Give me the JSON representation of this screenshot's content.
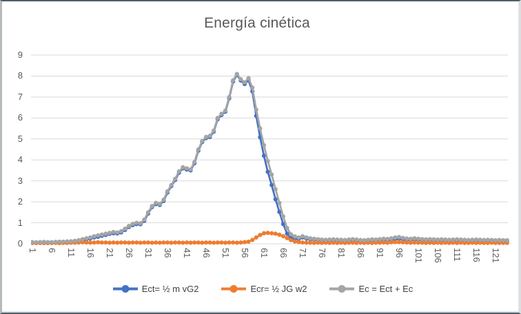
{
  "style": {
    "grid_color": "#D9D9D9",
    "tick_color": "#595959",
    "title_color": "#595959",
    "legend_text_color": "#404040"
  },
  "chart_data": {
    "type": "line",
    "title": "Energía cinética",
    "xlabel": "",
    "ylabel": "",
    "x_start": 1,
    "x_step": 1,
    "x_count": 124,
    "ylim": [
      0,
      9
    ],
    "grid": true,
    "legend_position": "bottom",
    "markers": "circle",
    "x_ticks": [
      1,
      6,
      11,
      16,
      21,
      26,
      31,
      36,
      41,
      46,
      51,
      56,
      61,
      66,
      71,
      76,
      81,
      86,
      91,
      96,
      101,
      106,
      111,
      116,
      121
    ],
    "y_ticks": [
      0,
      1,
      2,
      3,
      4,
      5,
      6,
      7,
      8,
      9
    ],
    "series": [
      {
        "name": "Ect= ½ m vG2",
        "color": "#4472C4",
        "values": [
          0.04,
          0.04,
          0.04,
          0.06,
          0.05,
          0.04,
          0.05,
          0.07,
          0.06,
          0.07,
          0.07,
          0.09,
          0.11,
          0.15,
          0.2,
          0.25,
          0.3,
          0.33,
          0.38,
          0.42,
          0.47,
          0.5,
          0.49,
          0.54,
          0.66,
          0.8,
          0.89,
          0.94,
          0.93,
          1.09,
          1.44,
          1.75,
          1.89,
          1.85,
          2.04,
          2.44,
          2.75,
          3.04,
          3.39,
          3.6,
          3.54,
          3.5,
          3.84,
          4.44,
          4.85,
          5.04,
          5.09,
          5.35,
          5.94,
          6.14,
          6.3,
          6.94,
          7.74,
          8.05,
          7.79,
          7.62,
          7.8,
          7.27,
          6.1,
          5.08,
          4.2,
          3.43,
          2.8,
          2.12,
          1.52,
          0.94,
          0.48,
          0.28,
          0.24,
          0.22,
          0.3,
          0.25,
          0.21,
          0.2,
          0.17,
          0.16,
          0.14,
          0.16,
          0.16,
          0.16,
          0.14,
          0.14,
          0.15,
          0.17,
          0.16,
          0.13,
          0.13,
          0.14,
          0.17,
          0.15,
          0.17,
          0.18,
          0.18,
          0.19,
          0.22,
          0.24,
          0.21,
          0.19,
          0.19,
          0.2,
          0.19,
          0.17,
          0.17,
          0.17,
          0.17,
          0.15,
          0.17,
          0.15,
          0.15,
          0.15,
          0.17,
          0.15,
          0.15,
          0.14,
          0.14,
          0.16,
          0.14,
          0.14,
          0.15,
          0.13,
          0.13,
          0.14,
          0.13,
          0.13
        ]
      },
      {
        "name": "Ecr= ½ JG w2",
        "color": "#ED7D31",
        "values": [
          0.04,
          0.03,
          0.04,
          0.03,
          0.03,
          0.04,
          0.04,
          0.03,
          0.04,
          0.04,
          0.05,
          0.05,
          0.06,
          0.07,
          0.06,
          0.05,
          0.06,
          0.07,
          0.06,
          0.06,
          0.05,
          0.06,
          0.05,
          0.06,
          0.06,
          0.05,
          0.06,
          0.06,
          0.05,
          0.06,
          0.06,
          0.05,
          0.06,
          0.05,
          0.06,
          0.06,
          0.05,
          0.06,
          0.06,
          0.05,
          0.06,
          0.05,
          0.06,
          0.06,
          0.05,
          0.06,
          0.06,
          0.05,
          0.06,
          0.06,
          0.05,
          0.06,
          0.06,
          0.05,
          0.06,
          0.08,
          0.1,
          0.18,
          0.3,
          0.42,
          0.5,
          0.52,
          0.5,
          0.48,
          0.43,
          0.36,
          0.27,
          0.17,
          0.11,
          0.08,
          0.06,
          0.05,
          0.05,
          0.04,
          0.05,
          0.04,
          0.05,
          0.04,
          0.05,
          0.04,
          0.05,
          0.04,
          0.05,
          0.05,
          0.04,
          0.05,
          0.04,
          0.05,
          0.04,
          0.05,
          0.05,
          0.06,
          0.05,
          0.07,
          0.08,
          0.08,
          0.07,
          0.06,
          0.05,
          0.06,
          0.05,
          0.05,
          0.04,
          0.05,
          0.04,
          0.05,
          0.04,
          0.05,
          0.04,
          0.05,
          0.04,
          0.05,
          0.04,
          0.04,
          0.05,
          0.04,
          0.05,
          0.04,
          0.04,
          0.05,
          0.04,
          0.04,
          0.04,
          0.04
        ]
      },
      {
        "name": "Ec = Ect + Ec",
        "color": "#A5A5A5",
        "values": [
          0.08,
          0.07,
          0.08,
          0.09,
          0.08,
          0.08,
          0.09,
          0.1,
          0.1,
          0.11,
          0.12,
          0.14,
          0.17,
          0.22,
          0.26,
          0.3,
          0.36,
          0.4,
          0.44,
          0.48,
          0.52,
          0.56,
          0.54,
          0.6,
          0.72,
          0.85,
          0.95,
          1.0,
          0.98,
          1.15,
          1.5,
          1.8,
          1.95,
          1.9,
          2.1,
          2.5,
          2.8,
          3.1,
          3.45,
          3.65,
          3.6,
          3.55,
          3.9,
          4.5,
          4.9,
          5.1,
          5.15,
          5.4,
          6.0,
          6.2,
          6.35,
          7.0,
          7.8,
          8.1,
          7.85,
          7.7,
          7.9,
          7.45,
          6.4,
          5.5,
          4.7,
          3.95,
          3.3,
          2.6,
          1.95,
          1.3,
          0.75,
          0.45,
          0.35,
          0.3,
          0.36,
          0.3,
          0.26,
          0.24,
          0.22,
          0.2,
          0.19,
          0.2,
          0.21,
          0.2,
          0.19,
          0.18,
          0.2,
          0.22,
          0.2,
          0.18,
          0.17,
          0.19,
          0.21,
          0.2,
          0.22,
          0.24,
          0.23,
          0.26,
          0.3,
          0.32,
          0.28,
          0.25,
          0.24,
          0.26,
          0.24,
          0.22,
          0.21,
          0.22,
          0.21,
          0.2,
          0.21,
          0.2,
          0.19,
          0.2,
          0.21,
          0.2,
          0.19,
          0.18,
          0.19,
          0.2,
          0.19,
          0.18,
          0.19,
          0.18,
          0.17,
          0.18,
          0.17,
          0.17
        ]
      }
    ]
  }
}
